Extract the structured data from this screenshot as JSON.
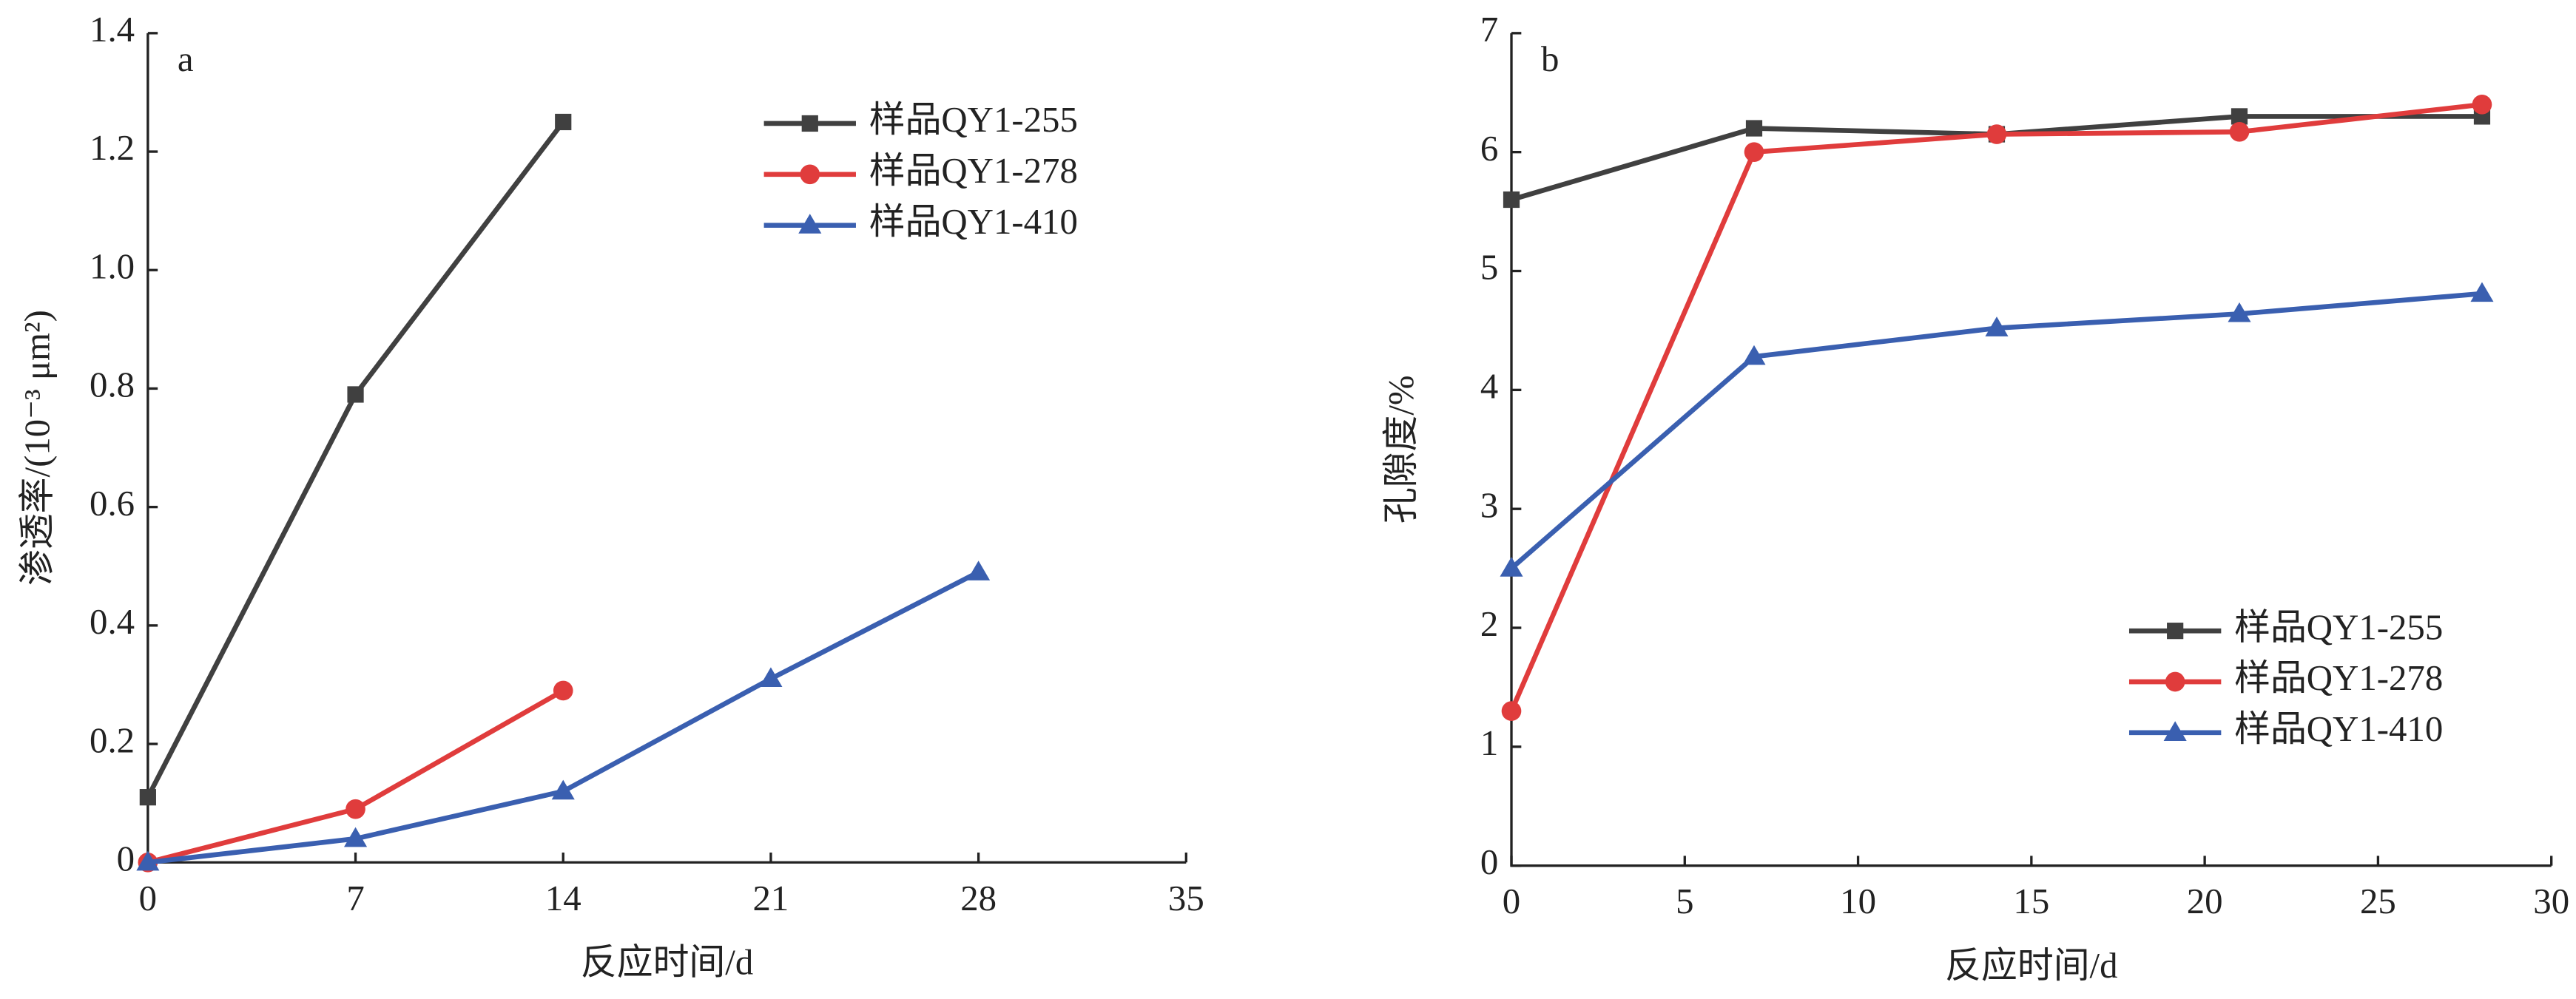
{
  "chart_data": [
    {
      "type": "line",
      "panel_label": "a",
      "x_label": "反应时间/d",
      "y_label": "渗透率/(10⁻³ μm²)",
      "xlim": [
        0,
        35
      ],
      "xticks": [
        0,
        7,
        14,
        21,
        28,
        35
      ],
      "ylim": [
        0,
        1.4
      ],
      "yticks": [
        0,
        0.2,
        0.4,
        0.6,
        0.8,
        {
          "value": 1,
          "label": "1.0"
        },
        1.2,
        1.4
      ],
      "legend": "upper right",
      "series": [
        {
          "name": "样品QY1-255",
          "color": "#404040",
          "marker": "square",
          "x": [
            0,
            7,
            14
          ],
          "values": [
            0.11,
            0.79,
            1.25
          ]
        },
        {
          "name": "样品QY1-278",
          "color": "#e03c3c",
          "marker": "circle",
          "x": [
            0,
            7,
            14
          ],
          "values": [
            0,
            0.09,
            0.29
          ]
        },
        {
          "name": "样品QY1-410",
          "color": "#3a5fb0",
          "marker": "triangle",
          "x": [
            0,
            7,
            14,
            21,
            28
          ],
          "values": [
            0,
            0.04,
            0.12,
            0.31,
            0.49
          ]
        }
      ]
    },
    {
      "type": "line",
      "panel_label": "b",
      "x_label": "反应时间/d",
      "y_label": "孔隙度/%",
      "xlim": [
        0,
        30
      ],
      "xticks": [
        0,
        5,
        10,
        15,
        20,
        25,
        30
      ],
      "ylim": [
        0,
        7
      ],
      "yticks": [
        0,
        1,
        2,
        3,
        4,
        5,
        6,
        7
      ],
      "legend": "lower right",
      "series": [
        {
          "name": "样品QY1-255",
          "color": "#404040",
          "marker": "square",
          "x": [
            0,
            7,
            14,
            21,
            28
          ],
          "values": [
            5.6,
            6.2,
            6.15,
            6.3,
            6.3
          ]
        },
        {
          "name": "样品QY1-278",
          "color": "#e03c3c",
          "marker": "circle",
          "x": [
            0,
            7,
            14,
            21,
            28
          ],
          "values": [
            1.3,
            6.0,
            6.15,
            6.17,
            6.4
          ]
        },
        {
          "name": "样品QY1-410",
          "color": "#3a5fb0",
          "marker": "triangle",
          "x": [
            0,
            7,
            14,
            21,
            28
          ],
          "values": [
            2.5,
            4.28,
            4.52,
            4.64,
            4.81
          ]
        }
      ]
    }
  ]
}
